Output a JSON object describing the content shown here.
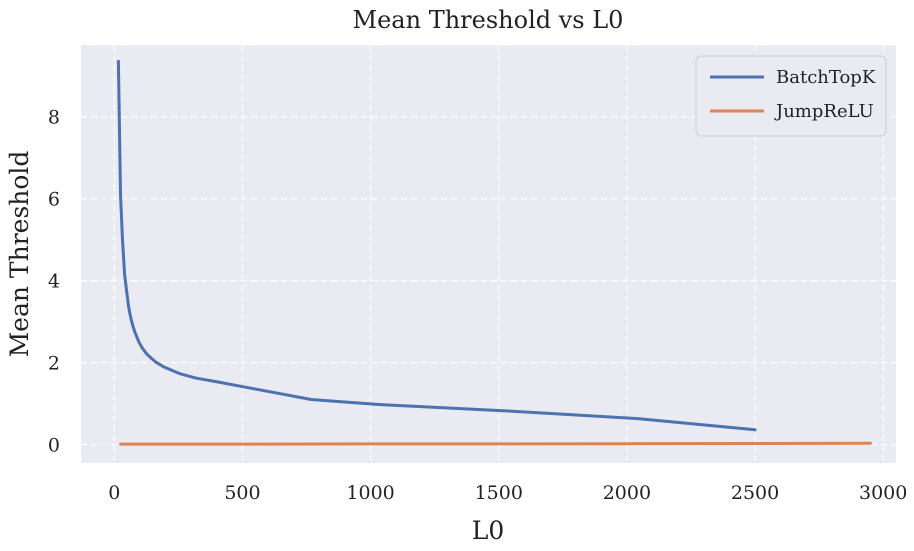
{
  "chart_data": {
    "type": "line",
    "title": "Mean Threshold vs L0",
    "xlabel": "L0",
    "ylabel": "Mean Threshold",
    "xlim": [
      -130,
      3050
    ],
    "ylim": [
      -0.45,
      9.75
    ],
    "xticks": [
      0,
      500,
      1000,
      1500,
      2000,
      2500,
      3000
    ],
    "yticks": [
      0,
      2,
      4,
      6,
      8
    ],
    "grid": true,
    "legend_position": "top-right",
    "series": [
      {
        "name": "BatchTopK",
        "color": "#4c72b0",
        "x": [
          16,
          24,
          32,
          40,
          48,
          56,
          64,
          72,
          80,
          96,
          112,
          128,
          160,
          192,
          256,
          320,
          384,
          512,
          640,
          768,
          1024,
          1536,
          2048,
          2500
        ],
        "y": [
          9.35,
          6.1,
          5.0,
          4.15,
          3.75,
          3.35,
          3.1,
          2.9,
          2.75,
          2.5,
          2.33,
          2.2,
          2.02,
          1.9,
          1.73,
          1.62,
          1.55,
          1.4,
          1.25,
          1.1,
          0.98,
          0.82,
          0.63,
          0.36
        ]
      },
      {
        "name": "JumpReLU",
        "color": "#dd8452",
        "x": [
          25,
          500,
          1000,
          1500,
          2000,
          2500,
          2950
        ],
        "y": [
          0.01,
          0.01,
          0.015,
          0.015,
          0.02,
          0.025,
          0.03
        ]
      }
    ]
  }
}
